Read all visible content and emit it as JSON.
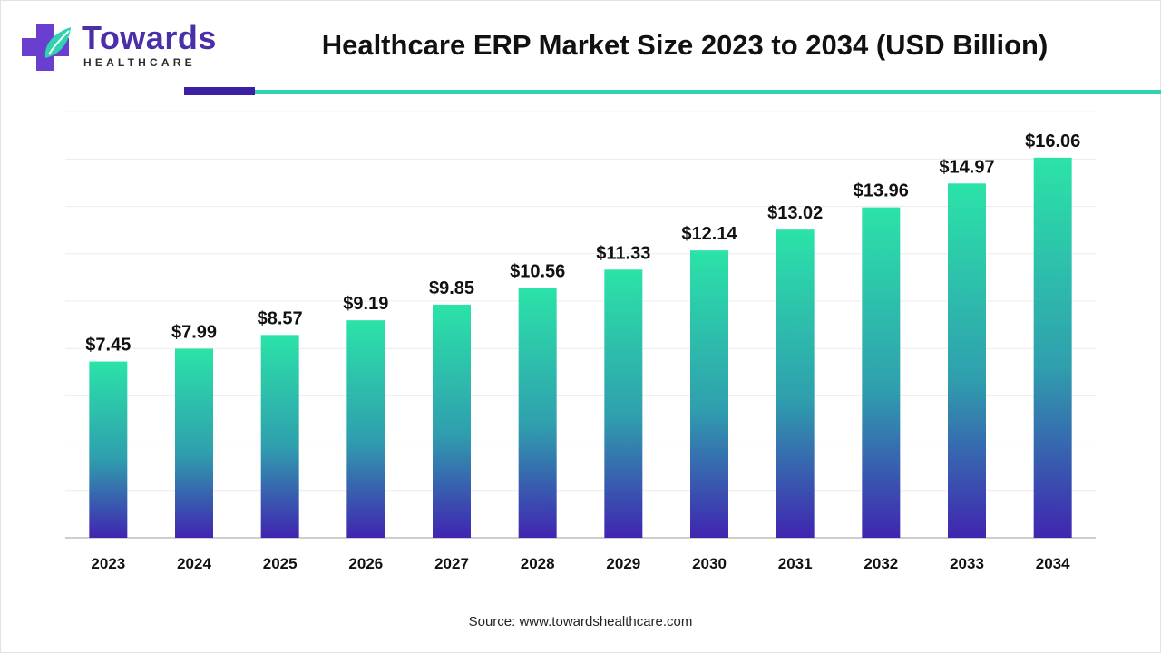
{
  "brand": {
    "name": "Towards",
    "tagline": "HEALTHCARE"
  },
  "source": "Source: www.towardshealthcare.com",
  "colors": {
    "bar_top": "#2be3a8",
    "bar_mid": "#2f9fae",
    "bar_bottom": "#4025b0",
    "brand_purple": "#4a2fa8",
    "accent_teal": "#2fd3ad"
  },
  "chart_data": {
    "type": "bar",
    "title": "Healthcare ERP Market Size 2023 to 2034 (USD Billion)",
    "categories": [
      "2023",
      "2024",
      "2025",
      "2026",
      "2027",
      "2028",
      "2029",
      "2030",
      "2031",
      "2032",
      "2033",
      "2034"
    ],
    "values": [
      7.45,
      7.99,
      8.57,
      9.19,
      9.85,
      10.56,
      11.33,
      12.14,
      13.02,
      13.96,
      14.97,
      16.06
    ],
    "labels": [
      "$7.45",
      "$7.99",
      "$8.57",
      "$9.19",
      "$9.85",
      "$10.56",
      "$11.33",
      "$12.14",
      "$13.02",
      "$13.96",
      "$14.97",
      "$16.06"
    ],
    "xlabel": "",
    "ylabel": "",
    "ylim": [
      0,
      18
    ],
    "grid": true,
    "legend": "none"
  }
}
